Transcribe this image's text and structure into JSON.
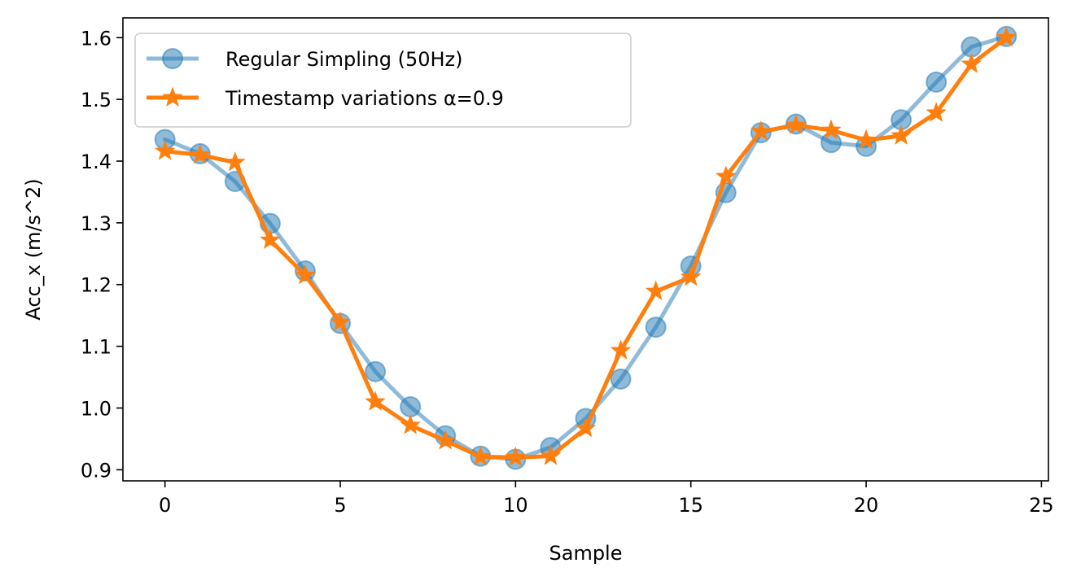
{
  "chart_data": {
    "type": "line",
    "xlabel": "Sample",
    "ylabel": "Acc_x (m/s^2)",
    "xlim": [
      -1.2,
      25.2
    ],
    "ylim": [
      0.882,
      1.632
    ],
    "xticks": [
      0,
      5,
      10,
      15,
      20,
      25
    ],
    "yticks": [
      0.9,
      1.0,
      1.1,
      1.2,
      1.3,
      1.4,
      1.5,
      1.6
    ],
    "grid": false,
    "legend_position": "top-left",
    "series": [
      {
        "name": "Regular Simpling (50Hz)",
        "color": "#1f77b4",
        "marker": "circle",
        "x": [
          0,
          1,
          2,
          3,
          4,
          5,
          6,
          7,
          8,
          9,
          10,
          11,
          12,
          13,
          14,
          15,
          16,
          17,
          18,
          19,
          20,
          21,
          22,
          23,
          24
        ],
        "y": [
          1.435,
          1.412,
          1.367,
          1.299,
          1.222,
          1.137,
          1.059,
          1.002,
          0.955,
          0.922,
          0.917,
          0.936,
          0.983,
          1.047,
          1.131,
          1.23,
          1.349,
          1.446,
          1.46,
          1.43,
          1.424,
          1.467,
          1.528,
          1.585,
          1.602
        ]
      },
      {
        "name": "Timestamp variations α=0.9",
        "color": "#ff7f0e",
        "marker": "star",
        "x": [
          0,
          1,
          2,
          3,
          4,
          5,
          6,
          7,
          8,
          9,
          10,
          11,
          12,
          13,
          14,
          15,
          16,
          17,
          18,
          19,
          20,
          21,
          22,
          23,
          24
        ],
        "y": [
          1.416,
          1.41,
          1.398,
          1.272,
          1.215,
          1.139,
          1.01,
          0.972,
          0.947,
          0.921,
          0.92,
          0.922,
          0.967,
          1.093,
          1.189,
          1.212,
          1.375,
          1.448,
          1.458,
          1.45,
          1.434,
          1.441,
          1.478,
          1.557,
          1.6
        ]
      }
    ]
  }
}
